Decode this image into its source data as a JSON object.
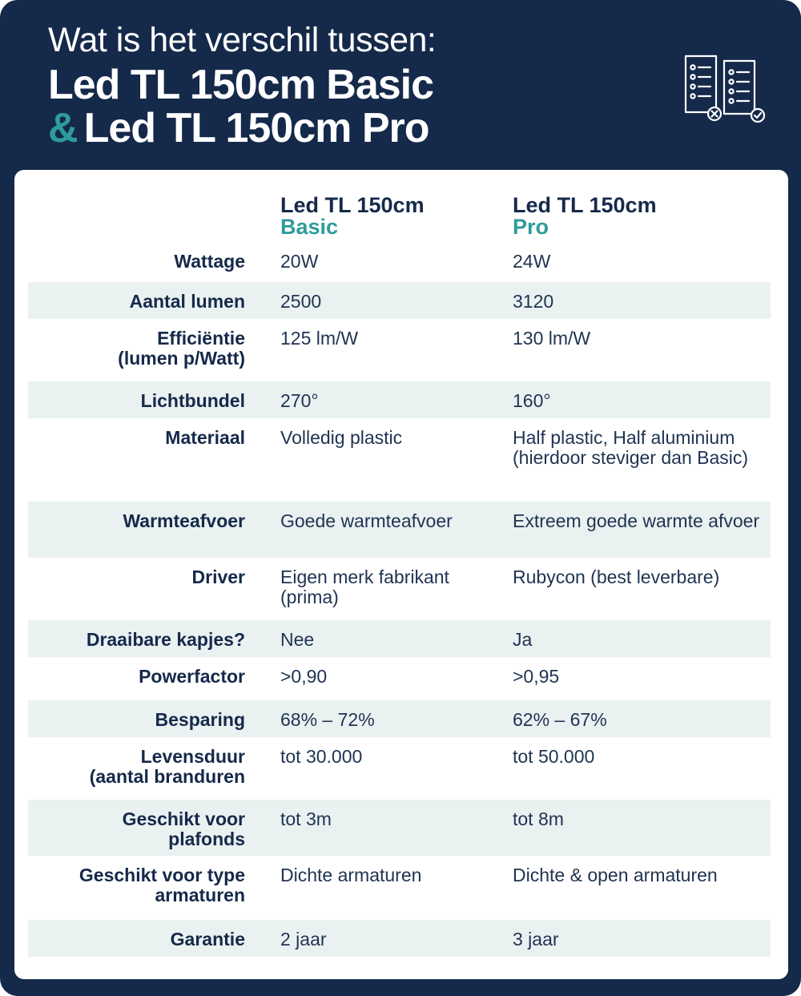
{
  "header": {
    "intro": "Wat is het verschil tussen:",
    "line1": "Led TL 150cm Basic",
    "ampersand": "&",
    "line2": "Led TL 150cm Pro",
    "icon": "compare-checklists-icon"
  },
  "columns": {
    "basic": {
      "name": "Led TL 150cm",
      "variant": "Basic"
    },
    "pro": {
      "name": "Led TL 150cm",
      "variant": "Pro"
    }
  },
  "colors": {
    "navy": "#15294a",
    "teal": "#2f9b9b",
    "stripe": "#eaf1f1"
  },
  "rows": [
    {
      "label": "Wattage",
      "basic": "20W",
      "pro": "24W"
    },
    {
      "label": "Aantal lumen",
      "basic": "2500",
      "pro": "3120"
    },
    {
      "label": "Efficiëntie\n(lumen p/Watt)",
      "basic": "125 lm/W",
      "pro": "130 lm/W"
    },
    {
      "label": "Lichtbundel",
      "basic": "270°",
      "pro": "160°"
    },
    {
      "label": "Materiaal",
      "basic": "Volledig plastic",
      "pro": "Half plastic, Half aluminium (hierdoor steviger dan Basic)"
    },
    {
      "label": "Warmteafvoer",
      "basic": "Goede warmteafvoer",
      "pro": "Extreem goede warmte afvoer"
    },
    {
      "label": "Driver",
      "basic": "Eigen merk fabrikant (prima)",
      "pro": "Rubycon (best leverbare)"
    },
    {
      "label": "Draaibare kapjes?",
      "basic": "Nee",
      "pro": "Ja"
    },
    {
      "label": "Powerfactor",
      "basic": ">0,90",
      "pro": ">0,95"
    },
    {
      "label": "Besparing",
      "basic": "68% – 72%",
      "pro": "62% – 67%"
    },
    {
      "label": "Levensduur\n(aantal branduren",
      "basic": "tot 30.000",
      "pro": "tot 50.000"
    },
    {
      "label": "Geschikt voor\nplafonds",
      "basic": "tot 3m",
      "pro": "tot 8m"
    },
    {
      "label": "Geschikt voor type\narmaturen",
      "basic": "Dichte armaturen",
      "pro": "Dichte & open armaturen"
    },
    {
      "label": "Garantie",
      "basic": "2 jaar",
      "pro": "3 jaar"
    }
  ]
}
